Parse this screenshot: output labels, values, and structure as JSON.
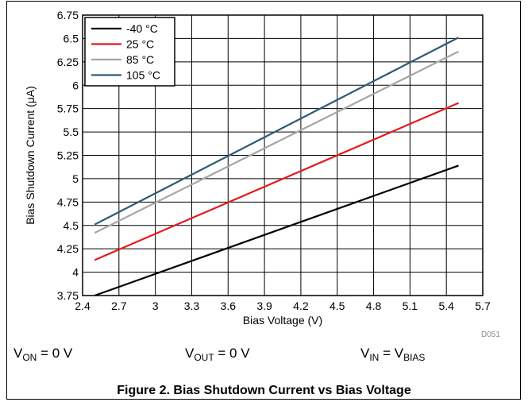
{
  "chart_data": {
    "type": "line",
    "xlabel": "Bias Voltage (V)",
    "ylabel": "Bias Shutdown Current (μA)",
    "xlim": [
      2.4,
      5.7
    ],
    "ylim": [
      3.75,
      6.75
    ],
    "x_ticks": [
      "2.4",
      "2.7",
      "3",
      "3.3",
      "3.6",
      "3.9",
      "4.2",
      "4.5",
      "4.8",
      "5.1",
      "5.4",
      "5.7"
    ],
    "y_ticks": [
      "3.75",
      "4",
      "4.25",
      "4.5",
      "4.75",
      "5",
      "5.25",
      "5.5",
      "5.75",
      "6",
      "6.25",
      "6.5",
      "6.75"
    ],
    "grid": true,
    "legend_position": "top-left",
    "series": [
      {
        "name": "-40 °C",
        "color": "#000000",
        "x": [
          2.5,
          5.5
        ],
        "y": [
          3.75,
          5.14
        ]
      },
      {
        "name": "25 °C",
        "color": "#e41a1c",
        "x": [
          2.5,
          5.5
        ],
        "y": [
          4.13,
          5.81
        ]
      },
      {
        "name": "85 °C",
        "color": "#a6a6a6",
        "x": [
          2.5,
          5.5
        ],
        "y": [
          4.42,
          6.36
        ]
      },
      {
        "name": "105 °C",
        "color": "#2e5a74",
        "x": [
          2.5,
          5.5
        ],
        "y": [
          4.51,
          6.51
        ]
      }
    ]
  },
  "figure_code": "D051",
  "conditions": {
    "von": {
      "prefix": "V",
      "sub": "ON",
      "suffix": " = 0 V"
    },
    "vout": {
      "prefix": "V",
      "sub": "OUT",
      "suffix": " = 0 V"
    },
    "vin": {
      "prefix": "V",
      "sub": "IN",
      "middle": " = V",
      "sub2": "BIAS"
    }
  },
  "caption": "Figure 2. Bias Shutdown Current vs Bias Voltage"
}
